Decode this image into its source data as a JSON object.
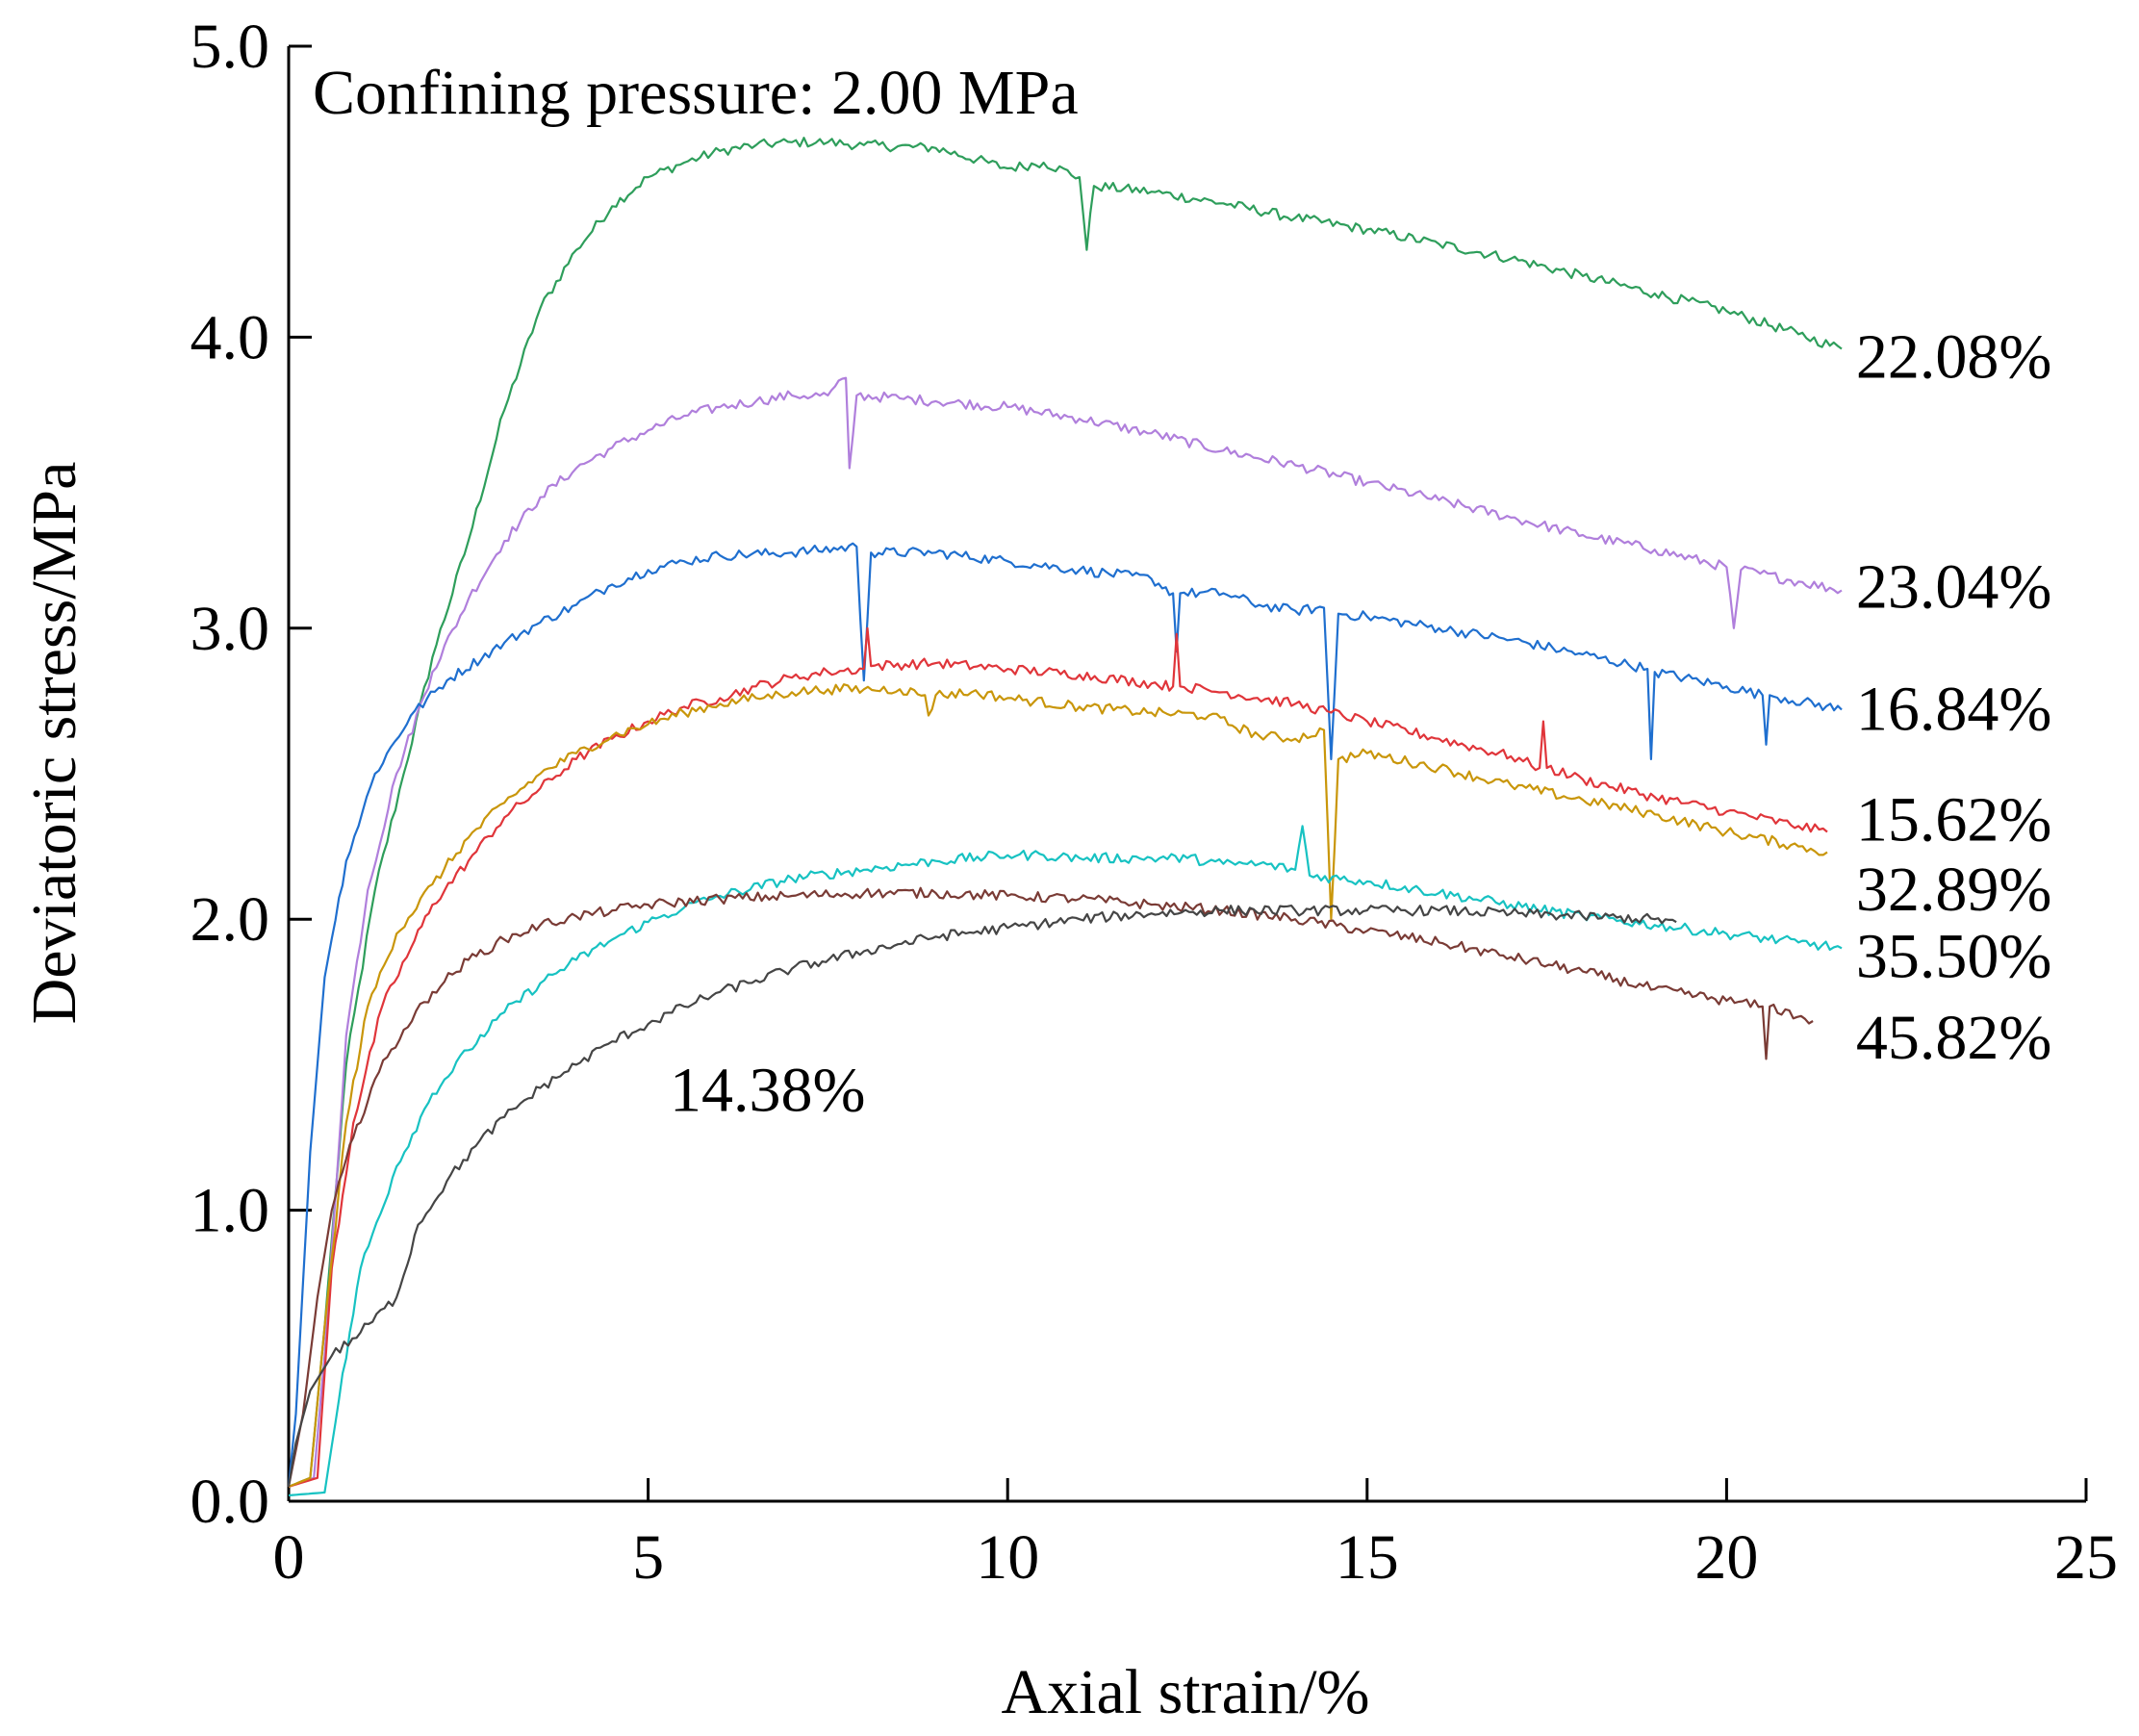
{
  "chart_data": {
    "type": "line",
    "title": "",
    "annotation": "Confining pressure: 2.00 MPa",
    "xlabel": "Axial strain/%",
    "ylabel": "Deviatoric stress/MPa",
    "xlim": [
      0,
      25
    ],
    "ylim": [
      0,
      5
    ],
    "xticks": [
      0,
      5,
      10,
      15,
      20,
      25
    ],
    "xtick_labels": [
      "0",
      "5",
      "10",
      "15",
      "20",
      "25"
    ],
    "yticks": [
      0,
      1,
      2,
      3,
      4,
      5
    ],
    "ytick_labels": [
      "0.0",
      "1.0",
      "2.0",
      "3.0",
      "4.0",
      "5.0"
    ],
    "grid": false,
    "series": [
      {
        "name": "22.08%",
        "color": "#2e9e5b",
        "label_at": [
          21.8,
          3.94
        ],
        "points": [
          [
            0,
            0.05
          ],
          [
            0.3,
            0.08
          ],
          [
            0.5,
            0.6
          ],
          [
            0.8,
            1.5
          ],
          [
            1.2,
            2.1
          ],
          [
            1.6,
            2.5
          ],
          [
            2.0,
            2.9
          ],
          [
            2.5,
            3.3
          ],
          [
            3.0,
            3.75
          ],
          [
            3.5,
            4.1
          ],
          [
            4.0,
            4.3
          ],
          [
            4.5,
            4.45
          ],
          [
            5.0,
            4.55
          ],
          [
            5.5,
            4.6
          ],
          [
            6.0,
            4.64
          ],
          [
            6.5,
            4.66
          ],
          [
            7.0,
            4.67
          ],
          [
            7.5,
            4.67
          ],
          [
            8.0,
            4.66
          ],
          [
            9.0,
            4.65
          ],
          [
            10.0,
            4.58
          ],
          [
            10.5,
            4.6
          ],
          [
            11.0,
            4.55
          ],
          [
            11.1,
            4.3
          ],
          [
            11.2,
            4.52
          ],
          [
            12.0,
            4.5
          ],
          [
            13.0,
            4.46
          ],
          [
            14.0,
            4.41
          ],
          [
            15.0,
            4.37
          ],
          [
            16.0,
            4.32
          ],
          [
            17.0,
            4.27
          ],
          [
            18.0,
            4.21
          ],
          [
            19.0,
            4.15
          ],
          [
            20.0,
            4.09
          ],
          [
            21.0,
            4.01
          ],
          [
            21.6,
            3.96
          ]
        ]
      },
      {
        "name": "23.04%",
        "color": "#b07fdc",
        "label_at": [
          21.8,
          3.15
        ],
        "points": [
          [
            0,
            0.05
          ],
          [
            0.35,
            0.08
          ],
          [
            0.5,
            0.5
          ],
          [
            0.8,
            1.6
          ],
          [
            1.1,
            2.1
          ],
          [
            1.5,
            2.5
          ],
          [
            2.0,
            2.85
          ],
          [
            2.5,
            3.1
          ],
          [
            3.0,
            3.3
          ],
          [
            3.5,
            3.45
          ],
          [
            4.0,
            3.55
          ],
          [
            4.5,
            3.62
          ],
          [
            5.0,
            3.68
          ],
          [
            5.5,
            3.73
          ],
          [
            6.0,
            3.76
          ],
          [
            6.5,
            3.78
          ],
          [
            7.0,
            3.8
          ],
          [
            7.5,
            3.8
          ],
          [
            7.75,
            3.86
          ],
          [
            7.8,
            3.55
          ],
          [
            7.9,
            3.8
          ],
          [
            8.5,
            3.79
          ],
          [
            9.0,
            3.78
          ],
          [
            10.0,
            3.76
          ],
          [
            11.0,
            3.72
          ],
          [
            12.0,
            3.67
          ],
          [
            13.0,
            3.61
          ],
          [
            14.0,
            3.56
          ],
          [
            15.0,
            3.5
          ],
          [
            16.0,
            3.44
          ],
          [
            17.0,
            3.38
          ],
          [
            18.0,
            3.32
          ],
          [
            19.0,
            3.27
          ],
          [
            20.0,
            3.21
          ],
          [
            20.1,
            3.0
          ],
          [
            20.2,
            3.2
          ],
          [
            21.0,
            3.16
          ],
          [
            21.6,
            3.13
          ]
        ]
      },
      {
        "name": "16.84%",
        "color": "#1f6fcf",
        "label_at": [
          21.8,
          2.73
        ],
        "points": [
          [
            0,
            0.05
          ],
          [
            0.1,
            0.3
          ],
          [
            0.3,
            1.2
          ],
          [
            0.5,
            1.8
          ],
          [
            0.8,
            2.2
          ],
          [
            1.2,
            2.5
          ],
          [
            1.7,
            2.7
          ],
          [
            2.2,
            2.82
          ],
          [
            3.0,
            2.95
          ],
          [
            3.5,
            3.02
          ],
          [
            4.0,
            3.08
          ],
          [
            4.5,
            3.15
          ],
          [
            5.0,
            3.2
          ],
          [
            5.5,
            3.23
          ],
          [
            6.0,
            3.25
          ],
          [
            7.0,
            3.26
          ],
          [
            7.9,
            3.28
          ],
          [
            8.0,
            2.82
          ],
          [
            8.1,
            3.26
          ],
          [
            9.0,
            3.26
          ],
          [
            10.0,
            3.23
          ],
          [
            11.0,
            3.2
          ],
          [
            12.0,
            3.17
          ],
          [
            12.3,
            3.12
          ],
          [
            12.35,
            2.92
          ],
          [
            12.4,
            3.12
          ],
          [
            13.0,
            3.12
          ],
          [
            13.5,
            3.08
          ],
          [
            14.0,
            3.06
          ],
          [
            14.4,
            3.07
          ],
          [
            14.5,
            2.55
          ],
          [
            14.6,
            3.05
          ],
          [
            15.0,
            3.04
          ],
          [
            16.0,
            3.0
          ],
          [
            17.0,
            2.96
          ],
          [
            18.0,
            2.91
          ],
          [
            18.9,
            2.86
          ],
          [
            18.95,
            2.55
          ],
          [
            19.0,
            2.85
          ],
          [
            20.0,
            2.8
          ],
          [
            20.5,
            2.77
          ],
          [
            20.55,
            2.6
          ],
          [
            20.6,
            2.77
          ],
          [
            21.6,
            2.72
          ]
        ]
      },
      {
        "name": "15.62%",
        "color": "#e0353a",
        "label_at": [
          21.8,
          2.35
        ],
        "points": [
          [
            0,
            0.05
          ],
          [
            0.4,
            0.08
          ],
          [
            0.6,
            0.8
          ],
          [
            0.9,
            1.3
          ],
          [
            1.3,
            1.7
          ],
          [
            1.7,
            1.9
          ],
          [
            2.0,
            2.05
          ],
          [
            2.5,
            2.2
          ],
          [
            3.0,
            2.35
          ],
          [
            3.5,
            2.45
          ],
          [
            4.0,
            2.55
          ],
          [
            4.5,
            2.62
          ],
          [
            5.0,
            2.68
          ],
          [
            5.5,
            2.73
          ],
          [
            6.0,
            2.76
          ],
          [
            6.5,
            2.8
          ],
          [
            7.0,
            2.83
          ],
          [
            7.5,
            2.85
          ],
          [
            8.0,
            2.86
          ],
          [
            8.05,
            3.0
          ],
          [
            8.1,
            2.87
          ],
          [
            9.0,
            2.88
          ],
          [
            10.0,
            2.86
          ],
          [
            11.0,
            2.84
          ],
          [
            12.0,
            2.81
          ],
          [
            12.3,
            2.8
          ],
          [
            12.35,
            2.98
          ],
          [
            12.4,
            2.8
          ],
          [
            13.0,
            2.78
          ],
          [
            14.0,
            2.74
          ],
          [
            14.5,
            2.71
          ],
          [
            15.0,
            2.68
          ],
          [
            16.0,
            2.62
          ],
          [
            17.0,
            2.56
          ],
          [
            17.4,
            2.52
          ],
          [
            17.45,
            2.68
          ],
          [
            17.5,
            2.52
          ],
          [
            18.0,
            2.48
          ],
          [
            19.0,
            2.42
          ],
          [
            20.0,
            2.37
          ],
          [
            21.0,
            2.32
          ],
          [
            21.4,
            2.3
          ]
        ]
      },
      {
        "name": "32.89%",
        "color": "#c9960a",
        "label_at": [
          21.8,
          2.11
        ],
        "points": [
          [
            0,
            0.05
          ],
          [
            0.3,
            0.08
          ],
          [
            0.5,
            0.6
          ],
          [
            0.8,
            1.3
          ],
          [
            1.1,
            1.7
          ],
          [
            1.5,
            1.95
          ],
          [
            2.0,
            2.12
          ],
          [
            2.5,
            2.28
          ],
          [
            3.0,
            2.4
          ],
          [
            3.5,
            2.5
          ],
          [
            4.0,
            2.57
          ],
          [
            4.5,
            2.63
          ],
          [
            5.0,
            2.67
          ],
          [
            5.5,
            2.71
          ],
          [
            6.0,
            2.74
          ],
          [
            6.5,
            2.76
          ],
          [
            7.0,
            2.78
          ],
          [
            7.5,
            2.79
          ],
          [
            8.0,
            2.79
          ],
          [
            8.5,
            2.79
          ],
          [
            8.85,
            2.77
          ],
          [
            8.9,
            2.7
          ],
          [
            9.0,
            2.77
          ],
          [
            9.5,
            2.78
          ],
          [
            10.0,
            2.76
          ],
          [
            11.0,
            2.73
          ],
          [
            12.0,
            2.71
          ],
          [
            12.8,
            2.7
          ],
          [
            13.5,
            2.63
          ],
          [
            14.0,
            2.62
          ],
          [
            14.4,
            2.65
          ],
          [
            14.5,
            2.0
          ],
          [
            14.6,
            2.55
          ],
          [
            15.0,
            2.57
          ],
          [
            16.0,
            2.52
          ],
          [
            17.0,
            2.46
          ],
          [
            18.0,
            2.41
          ],
          [
            19.0,
            2.36
          ],
          [
            20.0,
            2.3
          ],
          [
            21.0,
            2.25
          ],
          [
            21.4,
            2.23
          ]
        ]
      },
      {
        "name": "35.50%",
        "color": "#17c2c2",
        "label_at": [
          21.8,
          1.88
        ],
        "points": [
          [
            0,
            0.02
          ],
          [
            0.5,
            0.03
          ],
          [
            0.7,
            0.35
          ],
          [
            1.0,
            0.8
          ],
          [
            1.5,
            1.15
          ],
          [
            2.0,
            1.4
          ],
          [
            2.5,
            1.55
          ],
          [
            3.0,
            1.68
          ],
          [
            3.5,
            1.78
          ],
          [
            4.0,
            1.86
          ],
          [
            4.5,
            1.93
          ],
          [
            5.0,
            1.99
          ],
          [
            5.5,
            2.04
          ],
          [
            6.0,
            2.08
          ],
          [
            7.0,
            2.14
          ],
          [
            8.0,
            2.17
          ],
          [
            9.0,
            2.2
          ],
          [
            10.0,
            2.22
          ],
          [
            10.5,
            2.22
          ],
          [
            11.0,
            2.21
          ],
          [
            12.0,
            2.21
          ],
          [
            12.5,
            2.21
          ],
          [
            13.0,
            2.19
          ],
          [
            13.5,
            2.19
          ],
          [
            14.0,
            2.17
          ],
          [
            14.1,
            2.32
          ],
          [
            14.2,
            2.15
          ],
          [
            15.0,
            2.13
          ],
          [
            16.0,
            2.09
          ],
          [
            17.0,
            2.05
          ],
          [
            18.0,
            2.01
          ],
          [
            19.0,
            1.98
          ],
          [
            20.0,
            1.95
          ],
          [
            21.0,
            1.92
          ],
          [
            21.6,
            1.9
          ]
        ]
      },
      {
        "name": "45.82%",
        "color": "#7a3b35",
        "label_at": [
          21.8,
          1.6
        ],
        "points": [
          [
            0,
            0.05
          ],
          [
            0.2,
            0.3
          ],
          [
            0.4,
            0.7
          ],
          [
            0.6,
            1.0
          ],
          [
            0.9,
            1.25
          ],
          [
            1.2,
            1.45
          ],
          [
            1.6,
            1.62
          ],
          [
            2.0,
            1.75
          ],
          [
            2.5,
            1.86
          ],
          [
            3.0,
            1.93
          ],
          [
            3.5,
            1.98
          ],
          [
            4.0,
            2.01
          ],
          [
            4.5,
            2.03
          ],
          [
            5.0,
            2.05
          ],
          [
            6.0,
            2.07
          ],
          [
            7.0,
            2.08
          ],
          [
            8.0,
            2.09
          ],
          [
            9.0,
            2.09
          ],
          [
            10.0,
            2.08
          ],
          [
            11.0,
            2.07
          ],
          [
            12.0,
            2.05
          ],
          [
            13.0,
            2.03
          ],
          [
            14.0,
            2.0
          ],
          [
            15.0,
            1.96
          ],
          [
            16.0,
            1.92
          ],
          [
            17.0,
            1.87
          ],
          [
            18.0,
            1.82
          ],
          [
            19.0,
            1.76
          ],
          [
            20.0,
            1.72
          ],
          [
            20.5,
            1.7
          ],
          [
            20.55,
            1.52
          ],
          [
            20.6,
            1.7
          ],
          [
            21.2,
            1.65
          ]
        ]
      },
      {
        "name": "14.38%",
        "color": "#454545",
        "label_at": [
          5.3,
          1.42
        ],
        "points": [
          [
            0,
            0.05
          ],
          [
            0.1,
            0.2
          ],
          [
            0.3,
            0.38
          ],
          [
            0.6,
            0.5
          ],
          [
            1.0,
            0.58
          ],
          [
            1.5,
            0.7
          ],
          [
            1.8,
            0.95
          ],
          [
            2.2,
            1.1
          ],
          [
            2.6,
            1.22
          ],
          [
            3.0,
            1.32
          ],
          [
            3.5,
            1.42
          ],
          [
            4.0,
            1.5
          ],
          [
            4.5,
            1.58
          ],
          [
            5.0,
            1.64
          ],
          [
            5.5,
            1.7
          ],
          [
            6.0,
            1.75
          ],
          [
            6.5,
            1.79
          ],
          [
            7.0,
            1.83
          ],
          [
            8.0,
            1.89
          ],
          [
            9.0,
            1.94
          ],
          [
            10.0,
            1.97
          ],
          [
            11.0,
            2.0
          ],
          [
            12.0,
            2.02
          ],
          [
            13.0,
            2.03
          ],
          [
            14.0,
            2.03
          ],
          [
            15.0,
            2.03
          ],
          [
            16.0,
            2.03
          ],
          [
            17.0,
            2.02
          ],
          [
            18.0,
            2.01
          ],
          [
            19.0,
            2.0
          ],
          [
            19.3,
            1.99
          ]
        ]
      }
    ]
  }
}
